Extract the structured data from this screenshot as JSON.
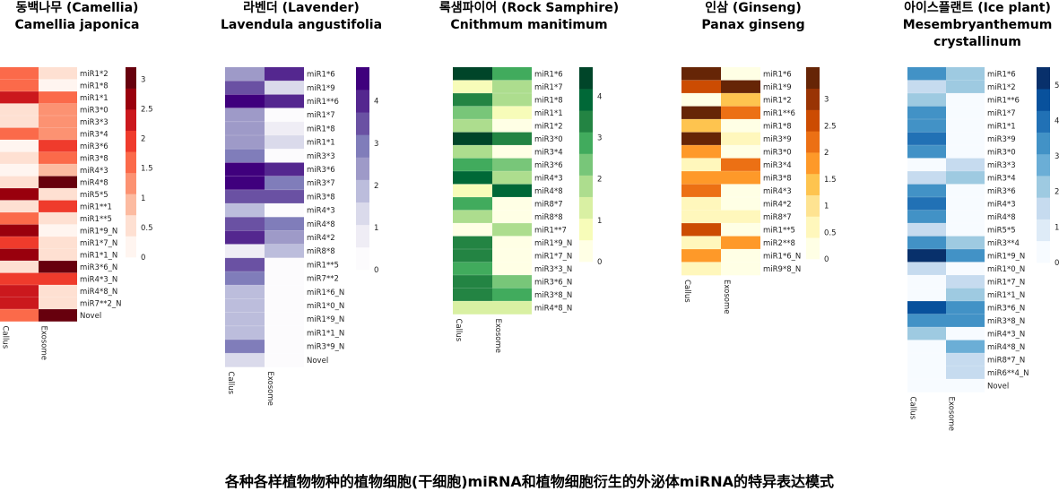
{
  "caption": "各种各样植物物种的植物细胞(干细胞)miRNA和植物细胞衍生的外泌体miRNA的特异表达模式",
  "chart_data": [
    {
      "type": "heatmap",
      "title": "동백나무 (Camellia)",
      "subtitle": "Camellia japonica",
      "colorscale": "Reds",
      "colors": [
        "#fff5f0",
        "#fee0d2",
        "#fcbba1",
        "#fc9272",
        "#fb6a4a",
        "#ef3b2c",
        "#cb181d",
        "#99000d",
        "#67000d"
      ],
      "columns": [
        "Callus",
        "Exosome"
      ],
      "rows": [
        "miR1*2",
        "miR1*8",
        "miR1*1",
        "miR3*0",
        "miR3*3",
        "miR3*4",
        "miR3*6",
        "miR3*8",
        "miR4*3",
        "miR4*8",
        "miR5*5",
        "miR1**1",
        "miR1**5",
        "miR1*9_N",
        "miR1*7_N",
        "miR1*1_N",
        "miR3*6_N",
        "miR4*3_N",
        "miR4*8_N",
        "miR7**2_N",
        "Novel"
      ],
      "values": [
        [
          1.6,
          0.3
        ],
        [
          1.6,
          0.1
        ],
        [
          2.4,
          1.5
        ],
        [
          0.2,
          1.2
        ],
        [
          0.2,
          1.2
        ],
        [
          1.6,
          1.0
        ],
        [
          0.1,
          1.8
        ],
        [
          0.3,
          1.7
        ],
        [
          0.1,
          0.8
        ],
        [
          0.2,
          3.0
        ],
        [
          2.6,
          0.4
        ],
        [
          0.3,
          1.9
        ],
        [
          1.7,
          0.2
        ],
        [
          2.6,
          0.1
        ],
        [
          1.9,
          0.2
        ],
        [
          2.8,
          0.2
        ],
        [
          0.5,
          3.2
        ],
        [
          1.8,
          1.8
        ],
        [
          2.2,
          0.2
        ],
        [
          2.3,
          0.6
        ],
        [
          1.7,
          3.2
        ]
      ],
      "colorbar_ticks": [
        0,
        0.5,
        1,
        1.5,
        2,
        2.5,
        3
      ],
      "vmax": 3.2
    },
    {
      "type": "heatmap",
      "title": "라벤더 (Lavender)",
      "subtitle": "Lavendula angustifolia",
      "colorscale": "Purples",
      "colors": [
        "#fcfbfd",
        "#efedf5",
        "#dadaeb",
        "#bcbddc",
        "#9e9ac8",
        "#807dba",
        "#6a51a3",
        "#54278f",
        "#3f007d"
      ],
      "columns": [
        "Callus",
        "Exosome"
      ],
      "rows": [
        "miR1*6",
        "miR1*9",
        "miR1**6",
        "miR1*7",
        "miR1*8",
        "miR1*1",
        "miR3*3",
        "miR3*6",
        "miR3*7",
        "miR3*8",
        "miR4*3",
        "miR4*8",
        "miR4*2",
        "miR8*8",
        "miR1**5",
        "miR7**2",
        "miR1*6_N",
        "miR1*0_N",
        "miR1*9_N",
        "miR1*1_N",
        "miR3*9_N",
        "Novel"
      ],
      "values": [
        [
          2.5,
          4.3
        ],
        [
          3.4,
          0.9
        ],
        [
          4.7,
          4.4
        ],
        [
          2.3,
          0.1
        ],
        [
          2.3,
          0.5
        ],
        [
          2.6,
          0.9
        ],
        [
          2.8,
          0.1
        ],
        [
          4.7,
          4.4
        ],
        [
          4.7,
          3.0
        ],
        [
          3.3,
          3.5
        ],
        [
          2.0,
          0.1
        ],
        [
          3.3,
          3.2
        ],
        [
          4.4,
          2.2
        ],
        [
          0.3,
          1.8
        ],
        [
          3.7,
          0.1
        ],
        [
          3.2,
          0.2
        ],
        [
          1.6,
          0.2
        ],
        [
          1.7,
          0.2
        ],
        [
          1.6,
          0.1
        ],
        [
          1.6,
          0.1
        ],
        [
          3.0,
          0.2
        ],
        [
          1.2,
          0.1
        ]
      ],
      "colorbar_ticks": [
        0,
        1,
        2,
        3,
        4
      ],
      "vmax": 4.8
    },
    {
      "type": "heatmap",
      "title": "록샘파이어 (Rock Samphire)",
      "subtitle": "Cnithmum manitimum",
      "colorscale": "Greens",
      "colors": [
        "#ffffe5",
        "#f7fcb9",
        "#d9f0a3",
        "#addd8e",
        "#78c679",
        "#41ab5d",
        "#238443",
        "#006837",
        "#004529"
      ],
      "columns": [
        "Callus",
        "Exosome"
      ],
      "rows": [
        "miR1*6",
        "miR1*7",
        "miR1*8",
        "miR1*1",
        "miR1*2",
        "miR3*0",
        "miR3*4",
        "miR3*6",
        "miR4*3",
        "miR4*8",
        "miR8*7",
        "miR8*8",
        "miR1**7",
        "miR1*9_N",
        "miR1*7_N",
        "miR3*3_N",
        "miR3*6_N",
        "miR3*8_N",
        "miR4*8_N"
      ],
      "values": [
        [
          4.5,
          3.2
        ],
        [
          0.3,
          1.6
        ],
        [
          3.6,
          1.5
        ],
        [
          2.6,
          0.3
        ],
        [
          1.5,
          0.2
        ],
        [
          4.6,
          3.3
        ],
        [
          1.8,
          0.2
        ],
        [
          2.7,
          2.6
        ],
        [
          4.0,
          1.7
        ],
        [
          0.3,
          4.2
        ],
        [
          3.1,
          0.2
        ],
        [
          1.7,
          0.2
        ],
        [
          0.2,
          1.6
        ],
        [
          3.7,
          0.2
        ],
        [
          3.7,
          0.2
        ],
        [
          2.7,
          0.2
        ],
        [
          3.6,
          2.6
        ],
        [
          3.6,
          3.1
        ],
        [
          1.4,
          1.3
        ]
      ],
      "colorbar_ticks": [
        0,
        1,
        2,
        3,
        4
      ],
      "vmax": 4.7
    },
    {
      "type": "heatmap",
      "title": "인삼 (Ginseng)",
      "subtitle": "Panax ginseng",
      "colorscale": "YlOrBr",
      "colors": [
        "#ffffe5",
        "#fff7bc",
        "#fee391",
        "#fec44f",
        "#fe9929",
        "#ec7014",
        "#cc4c02",
        "#993404",
        "#662506"
      ],
      "columns": [
        "Callus",
        "Exosome"
      ],
      "rows": [
        "miR1*6",
        "miR1*9",
        "miR1*2",
        "miR1**6",
        "miR1*8",
        "miR3*9",
        "miR3*0",
        "miR3*4",
        "miR3*8",
        "miR4*3",
        "miR4*2",
        "miR8*7",
        "miR1**5",
        "miR2**8",
        "miR1*6_N",
        "miR9*8_N"
      ],
      "values": [
        [
          3.5,
          0.1
        ],
        [
          2.9,
          3.4
        ],
        [
          0.1,
          1.2
        ],
        [
          3.6,
          2.2
        ],
        [
          1.3,
          0.2
        ],
        [
          3.4,
          0.3
        ],
        [
          1.9,
          0.1
        ],
        [
          0.4,
          2.1
        ],
        [
          2.0,
          1.9
        ],
        [
          2.2,
          0.1
        ],
        [
          0.6,
          0.1
        ],
        [
          0.5,
          0.5
        ],
        [
          2.8,
          0.1
        ],
        [
          0.3,
          1.9
        ],
        [
          2.0,
          0.1
        ],
        [
          0.6,
          0.1
        ]
      ],
      "colorbar_ticks": [
        0,
        0.5,
        1,
        1.5,
        2,
        2.5,
        3
      ],
      "vmax": 3.6
    },
    {
      "type": "heatmap",
      "title": "아이스플랜트 (Ice plant)",
      "subtitle_lines": [
        "Mesembryanthemum",
        "crystallinum"
      ],
      "colorscale": "Blues",
      "colors": [
        "#f7fbff",
        "#deebf7",
        "#c6dbef",
        "#9ecae1",
        "#6baed6",
        "#4292c6",
        "#2171b5",
        "#08519c",
        "#08306b"
      ],
      "columns": [
        "Callus",
        "Exosome"
      ],
      "rows": [
        "miR1*6",
        "miR1*2",
        "miR1**6",
        "miR1*7",
        "miR1*1",
        "miR3*9",
        "miR3*0",
        "miR3*3",
        "miR3*4",
        "miR3*6",
        "miR4*3",
        "miR4*8",
        "miR5*5",
        "miR3**4",
        "miR1*9_N",
        "miR1*0_N",
        "miR1*7_N",
        "miR1*1_N",
        "miR3*6_N",
        "miR3*8_N",
        "miR4*3_N",
        "miR4*8_N",
        "miR8*7_N",
        "miR6**4_N",
        "Novel"
      ],
      "values": [
        [
          3.6,
          2.1
        ],
        [
          1.3,
          2.1
        ],
        [
          2.1,
          0.1
        ],
        [
          3.7,
          0.1
        ],
        [
          3.7,
          0.1
        ],
        [
          3.9,
          0.1
        ],
        [
          3.7,
          0.1
        ],
        [
          0.2,
          1.3
        ],
        [
          1.3,
          1.9
        ],
        [
          3.6,
          0.2
        ],
        [
          4.4,
          0.1
        ],
        [
          3.3,
          0.1
        ],
        [
          1.6,
          0.1
        ],
        [
          3.3,
          2.0
        ],
        [
          5.4,
          3.4
        ],
        [
          1.1,
          0.1
        ],
        [
          0.2,
          1.1
        ],
        [
          0.3,
          2.0
        ],
        [
          4.6,
          3.2
        ],
        [
          3.5,
          3.1
        ],
        [
          1.9,
          0.1
        ],
        [
          0.1,
          2.5
        ],
        [
          0.1,
          1.2
        ],
        [
          0.3,
          1.2
        ],
        [
          0.1,
          0.1
        ]
      ],
      "colorbar_ticks": [
        0,
        1,
        2,
        3,
        4,
        5
      ],
      "vmax": 5.5
    }
  ]
}
